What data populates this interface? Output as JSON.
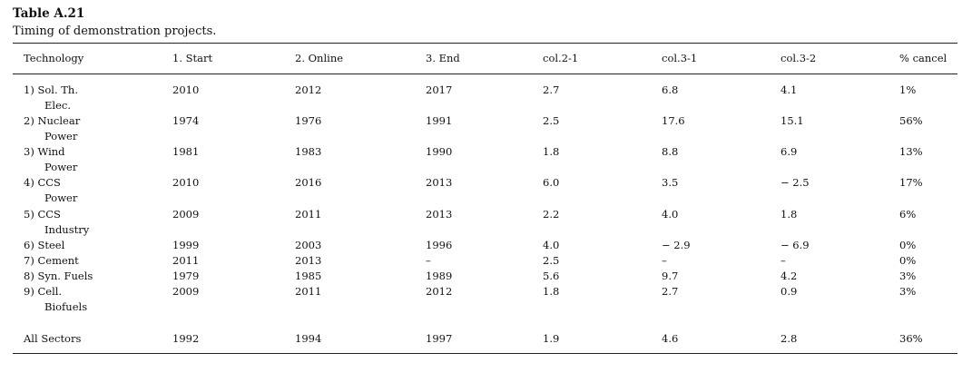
{
  "table": {
    "label": "Table A.21",
    "caption": "Timing of demonstration projects.",
    "headers": [
      "Technology",
      "1. Start",
      "2. Online",
      "3. End",
      "col.2-1",
      "col.3-1",
      "col.3-2",
      "% cancel"
    ],
    "rows": [
      {
        "tech1": "1) Sol. Th.",
        "tech2": "Elec.",
        "cells": [
          "2010",
          "2012",
          "2017",
          "2.7",
          "6.8",
          "4.1",
          "1%"
        ]
      },
      {
        "tech1": "2) Nuclear",
        "tech2": "Power",
        "cells": [
          "1974",
          "1976",
          "1991",
          "2.5",
          "17.6",
          "15.1",
          "56%"
        ]
      },
      {
        "tech1": "3) Wind",
        "tech2": "Power",
        "cells": [
          "1981",
          "1983",
          "1990",
          "1.8",
          "8.8",
          "6.9",
          "13%"
        ]
      },
      {
        "tech1": "4) CCS",
        "tech2": "Power",
        "cells": [
          "2010",
          "2016",
          "2013",
          "6.0",
          "3.5",
          "− 2.5",
          "17%"
        ]
      },
      {
        "tech1": "5) CCS",
        "tech2": "Industry",
        "cells": [
          "2009",
          "2011",
          "2013",
          "2.2",
          "4.0",
          "1.8",
          "6%"
        ]
      },
      {
        "tech1": "6) Steel",
        "tech2": "",
        "cells": [
          "1999",
          "2003",
          "1996",
          "4.0",
          "− 2.9",
          "− 6.9",
          "0%"
        ]
      },
      {
        "tech1": "7) Cement",
        "tech2": "",
        "cells": [
          "2011",
          "2013",
          "–",
          "2.5",
          "–",
          "–",
          "0%"
        ]
      },
      {
        "tech1": "8) Syn. Fuels",
        "tech2": "",
        "cells": [
          "1979",
          "1985",
          "1989",
          "5.6",
          "9.7",
          "4.2",
          "3%"
        ]
      },
      {
        "tech1": "9) Cell.",
        "tech2": "Biofuels",
        "cells": [
          "2009",
          "2011",
          "2012",
          "1.8",
          "2.7",
          "0.9",
          "3%"
        ]
      },
      {
        "tech1": "All Sectors",
        "tech2": "",
        "cells": [
          "1992",
          "1994",
          "1997",
          "1.9",
          "4.6",
          "2.8",
          "36%"
        ]
      }
    ]
  }
}
